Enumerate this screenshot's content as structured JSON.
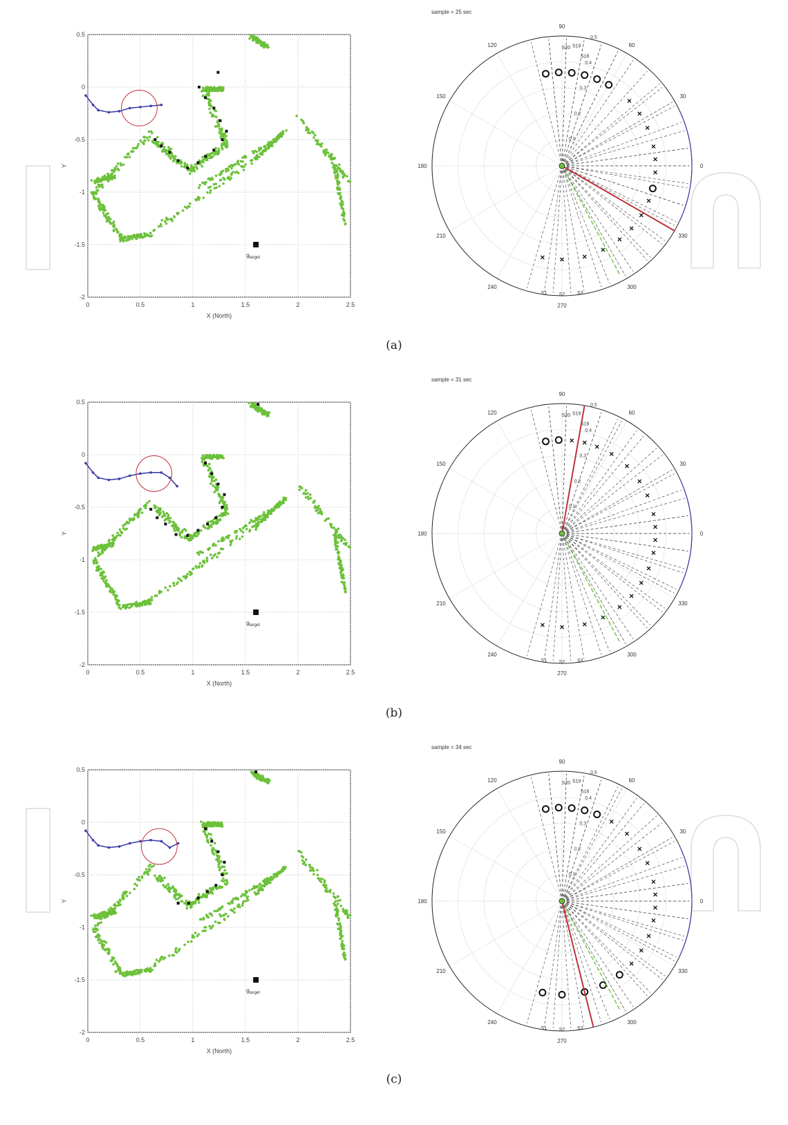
{
  "chart_data": [
    {
      "panel": "(a)",
      "scatter_map": {
        "type": "scatter",
        "xlabel": "X (North)",
        "ylabel": "Y",
        "xlim": [
          0,
          2.5
        ],
        "ylim": [
          -2,
          0.5
        ],
        "xticks": [
          "0",
          "0.5",
          "1",
          "1.5",
          "2",
          "2.5"
        ],
        "yticks": [
          "-2",
          "-1.5",
          "-1",
          "-0.5",
          "0",
          "0.5"
        ],
        "grid": true,
        "target": {
          "x": 1.6,
          "y": -1.5,
          "label": "target",
          "label_prefix": "g"
        },
        "robot_trail": [
          [
            -0.02,
            -0.08
          ],
          [
            0.05,
            -0.17
          ],
          [
            0.1,
            -0.22
          ],
          [
            0.2,
            -0.24
          ],
          [
            0.3,
            -0.23
          ],
          [
            0.4,
            -0.2
          ],
          [
            0.5,
            -0.19
          ],
          [
            0.6,
            -0.18
          ],
          [
            0.7,
            -0.17
          ]
        ],
        "robot_circle": {
          "cx": 0.49,
          "cy": -0.2,
          "r": 0.17
        },
        "black_points": [
          [
            0.64,
            -0.5
          ],
          [
            0.7,
            -0.56
          ],
          [
            0.78,
            -0.62
          ],
          [
            0.86,
            -0.7
          ],
          [
            0.95,
            -0.77
          ],
          [
            1.05,
            -0.72
          ],
          [
            1.12,
            -0.66
          ],
          [
            1.2,
            -0.6
          ],
          [
            1.28,
            -0.5
          ],
          [
            1.32,
            -0.42
          ],
          [
            1.26,
            -0.32
          ],
          [
            1.2,
            -0.2
          ],
          [
            1.12,
            -0.1
          ],
          [
            1.06,
            0.0
          ],
          [
            1.24,
            0.14
          ]
        ]
      },
      "polar": {
        "type": "polar",
        "title": "sample = 25 sec",
        "angle_labels": [
          "90",
          "60",
          "30",
          "0",
          "330",
          "300",
          "270",
          "240",
          "210",
          "180",
          "150",
          "120"
        ],
        "radial_ticks": [
          "0.1",
          "0.2",
          "0.3",
          "0.4",
          "0.5"
        ],
        "sector_labels": [
          "S1",
          "S2",
          "S3",
          "S18",
          "S19",
          "S20"
        ],
        "heading_deg": -30,
        "sectors": [
          {
            "angle": 100,
            "mark": "o"
          },
          {
            "angle": 92,
            "mark": "o"
          },
          {
            "angle": 84,
            "mark": "o"
          },
          {
            "angle": 76,
            "mark": "o"
          },
          {
            "angle": 68,
            "mark": "o"
          },
          {
            "angle": 60,
            "mark": "o"
          },
          {
            "angle": 44,
            "mark": "x"
          },
          {
            "angle": 34,
            "mark": "x"
          },
          {
            "angle": 24,
            "mark": "x"
          },
          {
            "angle": 12,
            "mark": "x"
          },
          {
            "angle": 4,
            "mark": "x"
          },
          {
            "angle": -4,
            "mark": "x"
          },
          {
            "angle": -14,
            "mark": "o"
          },
          {
            "angle": -22,
            "mark": "x"
          },
          {
            "angle": -32,
            "mark": "x"
          },
          {
            "angle": -42,
            "mark": "x"
          },
          {
            "angle": -52,
            "mark": "x"
          },
          {
            "angle": -64,
            "mark": "x"
          },
          {
            "angle": -76,
            "mark": "x"
          },
          {
            "angle": -90,
            "mark": "x"
          },
          {
            "angle": -102,
            "mark": "x"
          }
        ]
      }
    },
    {
      "panel": "(b)",
      "scatter_map": {
        "type": "scatter",
        "xlabel": "X (North)",
        "ylabel": "Y",
        "xlim": [
          0,
          2.5
        ],
        "ylim": [
          -2,
          0.5
        ],
        "xticks": [
          "0",
          "0.5",
          "1",
          "1.5",
          "2",
          "2.5"
        ],
        "yticks": [
          "-2",
          "-1.5",
          "-1",
          "-0.5",
          "0",
          "0.5"
        ],
        "grid": true,
        "target": {
          "x": 1.6,
          "y": -1.5,
          "label": "target",
          "label_prefix": "g"
        },
        "robot_trail": [
          [
            -0.02,
            -0.08
          ],
          [
            0.05,
            -0.17
          ],
          [
            0.1,
            -0.22
          ],
          [
            0.2,
            -0.24
          ],
          [
            0.3,
            -0.23
          ],
          [
            0.4,
            -0.2
          ],
          [
            0.5,
            -0.18
          ],
          [
            0.6,
            -0.17
          ],
          [
            0.7,
            -0.17
          ],
          [
            0.78,
            -0.22
          ],
          [
            0.85,
            -0.3
          ]
        ],
        "robot_circle": {
          "cx": 0.63,
          "cy": -0.18,
          "r": 0.17
        },
        "black_points": [
          [
            0.6,
            -0.52
          ],
          [
            0.66,
            -0.6
          ],
          [
            0.74,
            -0.66
          ],
          [
            0.84,
            -0.76
          ],
          [
            0.95,
            -0.77
          ],
          [
            1.05,
            -0.72
          ],
          [
            1.14,
            -0.66
          ],
          [
            1.22,
            -0.6
          ],
          [
            1.28,
            -0.5
          ],
          [
            1.3,
            -0.38
          ],
          [
            1.24,
            -0.28
          ],
          [
            1.18,
            -0.18
          ],
          [
            1.12,
            -0.08
          ],
          [
            1.62,
            0.48
          ]
        ]
      },
      "polar": {
        "type": "polar",
        "title": "sample = 31 sec",
        "angle_labels": [
          "90",
          "60",
          "30",
          "0",
          "330",
          "300",
          "270",
          "240",
          "210",
          "180",
          "150",
          "120"
        ],
        "radial_ticks": [
          "0.1",
          "0.2",
          "0.3",
          "0.4",
          "0.5"
        ],
        "sector_labels": [
          "S1",
          "S2",
          "S3",
          "S18",
          "S19",
          "S20"
        ],
        "heading_deg": 80,
        "sectors": [
          {
            "angle": 100,
            "mark": "o"
          },
          {
            "angle": 92,
            "mark": "o"
          },
          {
            "angle": 84,
            "mark": "x"
          },
          {
            "angle": 76,
            "mark": "x"
          },
          {
            "angle": 68,
            "mark": "x"
          },
          {
            "angle": 58,
            "mark": "x"
          },
          {
            "angle": 46,
            "mark": "x"
          },
          {
            "angle": 34,
            "mark": "x"
          },
          {
            "angle": 24,
            "mark": "x"
          },
          {
            "angle": 12,
            "mark": "x"
          },
          {
            "angle": 4,
            "mark": "x"
          },
          {
            "angle": -4,
            "mark": "x"
          },
          {
            "angle": -12,
            "mark": "x"
          },
          {
            "angle": -22,
            "mark": "x"
          },
          {
            "angle": -32,
            "mark": "x"
          },
          {
            "angle": -42,
            "mark": "x"
          },
          {
            "angle": -52,
            "mark": "x"
          },
          {
            "angle": -64,
            "mark": "x"
          },
          {
            "angle": -76,
            "mark": "x"
          },
          {
            "angle": -90,
            "mark": "x"
          },
          {
            "angle": -102,
            "mark": "x"
          }
        ]
      }
    },
    {
      "panel": "(c)",
      "scatter_map": {
        "type": "scatter",
        "xlabel": "X (North)",
        "ylabel": "Y",
        "xlim": [
          0,
          2.5
        ],
        "ylim": [
          -2,
          0.5
        ],
        "xticks": [
          "0",
          "0.5",
          "1",
          "1.5",
          "2",
          "2.5"
        ],
        "yticks": [
          "-2",
          "-1.5",
          "-1",
          "-0.5",
          "0",
          "0.5"
        ],
        "grid": true,
        "target": {
          "x": 1.6,
          "y": -1.5,
          "label": "target",
          "label_prefix": "g"
        },
        "robot_trail": [
          [
            -0.02,
            -0.08
          ],
          [
            0.05,
            -0.17
          ],
          [
            0.1,
            -0.22
          ],
          [
            0.2,
            -0.24
          ],
          [
            0.3,
            -0.23
          ],
          [
            0.4,
            -0.2
          ],
          [
            0.5,
            -0.18
          ],
          [
            0.6,
            -0.17
          ],
          [
            0.7,
            -0.18
          ],
          [
            0.78,
            -0.24
          ],
          [
            0.86,
            -0.2
          ]
        ],
        "robot_circle": {
          "cx": 0.68,
          "cy": -0.23,
          "r": 0.17
        },
        "black_points": [
          [
            0.86,
            -0.77
          ],
          [
            0.96,
            -0.77
          ],
          [
            1.05,
            -0.72
          ],
          [
            1.14,
            -0.66
          ],
          [
            1.22,
            -0.6
          ],
          [
            1.28,
            -0.5
          ],
          [
            1.3,
            -0.38
          ],
          [
            1.24,
            -0.28
          ],
          [
            1.18,
            -0.18
          ],
          [
            1.12,
            -0.06
          ],
          [
            1.6,
            0.48
          ]
        ]
      },
      "polar": {
        "type": "polar",
        "title": "sample = 34 sec",
        "angle_labels": [
          "90",
          "60",
          "30",
          "0",
          "330",
          "300",
          "270",
          "240",
          "210",
          "180",
          "150",
          "120"
        ],
        "radial_ticks": [
          "0.1",
          "0.2",
          "0.3",
          "0.4",
          "0.5"
        ],
        "sector_labels": [
          "S1",
          "S2",
          "S3",
          "S18",
          "S19",
          "S20"
        ],
        "heading_deg": -76,
        "sectors": [
          {
            "angle": 100,
            "mark": "o"
          },
          {
            "angle": 92,
            "mark": "o"
          },
          {
            "angle": 84,
            "mark": "o"
          },
          {
            "angle": 76,
            "mark": "o"
          },
          {
            "angle": 68,
            "mark": "o"
          },
          {
            "angle": 58,
            "mark": "x"
          },
          {
            "angle": 46,
            "mark": "x"
          },
          {
            "angle": 34,
            "mark": "x"
          },
          {
            "angle": 24,
            "mark": "x"
          },
          {
            "angle": 12,
            "mark": "x"
          },
          {
            "angle": 4,
            "mark": "x"
          },
          {
            "angle": -4,
            "mark": "x"
          },
          {
            "angle": -12,
            "mark": "x"
          },
          {
            "angle": -22,
            "mark": "x"
          },
          {
            "angle": -32,
            "mark": "x"
          },
          {
            "angle": -42,
            "mark": "x"
          },
          {
            "angle": -52,
            "mark": "o"
          },
          {
            "angle": -64,
            "mark": "o"
          },
          {
            "angle": -76,
            "mark": "o"
          },
          {
            "angle": -90,
            "mark": "o"
          },
          {
            "angle": -102,
            "mark": "o"
          }
        ]
      }
    }
  ],
  "captions": [
    "(a)",
    "(b)",
    "(c)"
  ],
  "colors": {
    "green": "#6cc13a",
    "blue": "#3d3da8",
    "red": "#c0303a",
    "black": "#111111",
    "grid": "#bdbdbd"
  }
}
